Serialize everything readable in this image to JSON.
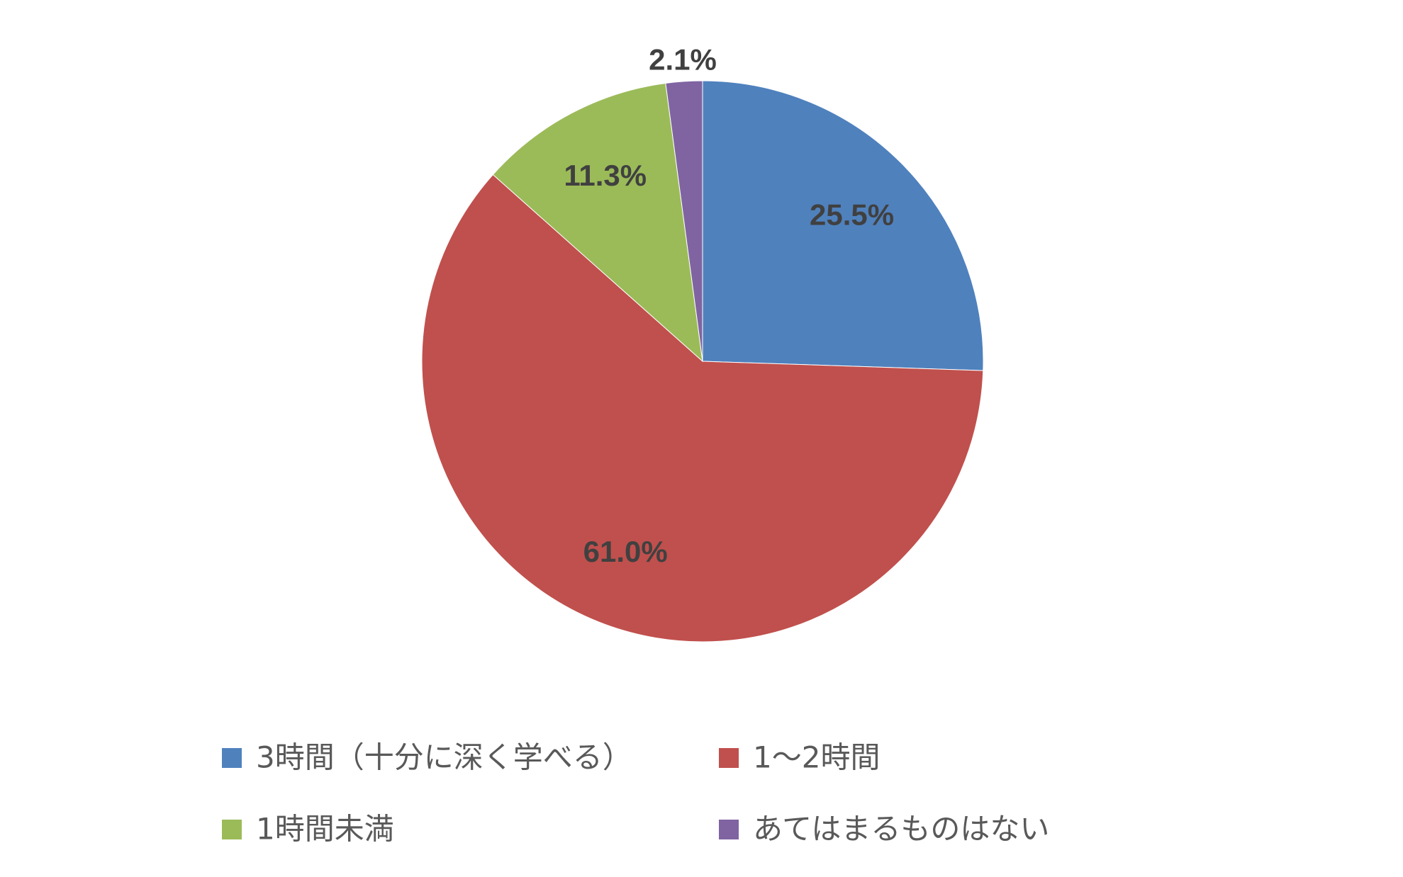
{
  "chart_data": {
    "type": "pie",
    "categories": [
      "3時間（十分に深く学べる）",
      "1〜2時間",
      "1時間未満",
      "あてはまるものはない"
    ],
    "values": [
      25.5,
      61.0,
      11.3,
      2.1
    ],
    "value_labels": [
      "25.5%",
      "61.0%",
      "11.3%",
      "2.1%"
    ],
    "colors": [
      "#4f81bd",
      "#c0504d",
      "#9bbb59",
      "#8064a2"
    ]
  }
}
